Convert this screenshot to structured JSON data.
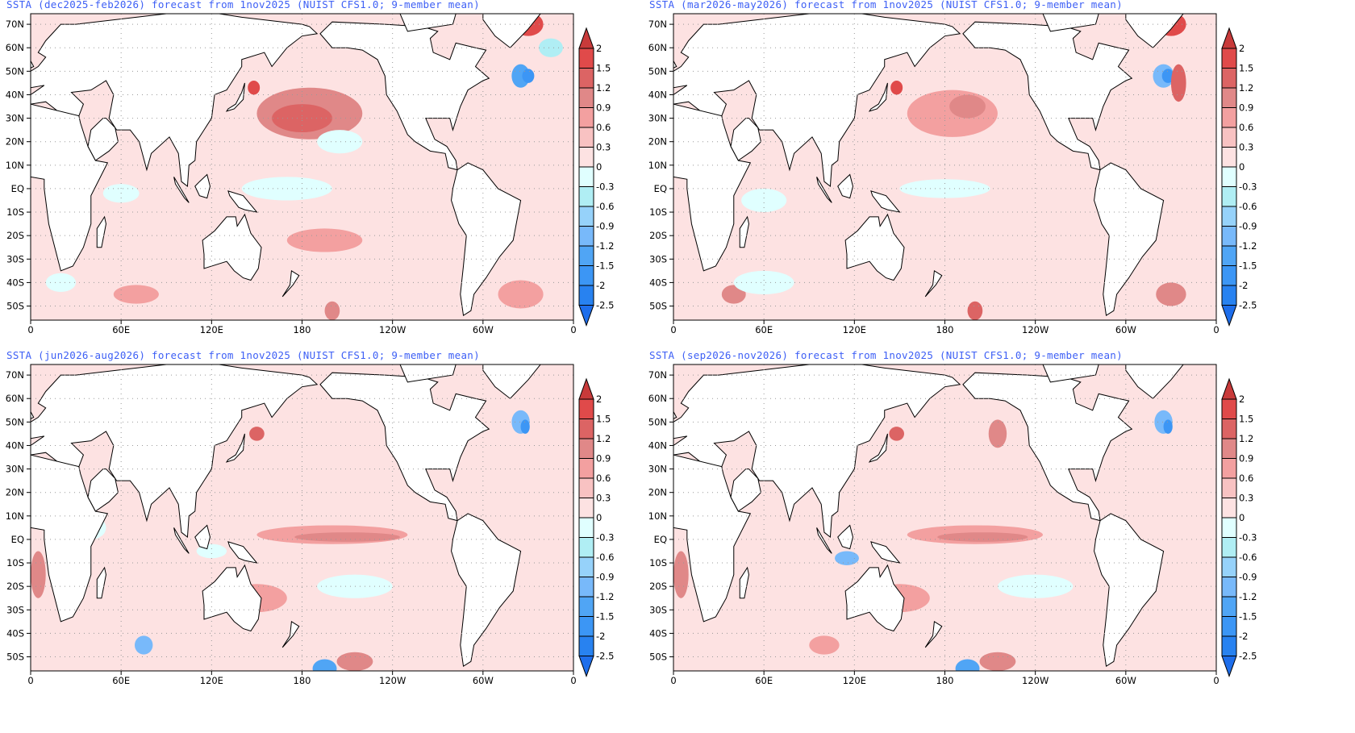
{
  "panels": [
    {
      "title": "SSTA (dec2025-feb2026) forecast from 1nov2025 (NUIST CFS1.0; 9-member mean)"
    },
    {
      "title": "SSTA (mar2026-may2026) forecast from 1nov2025 (NUIST CFS1.0; 9-member mean)"
    },
    {
      "title": "SSTA (jun2026-aug2026) forecast from 1nov2025 (NUIST CFS1.0; 9-member mean)"
    },
    {
      "title": "SSTA (sep2026-nov2026) forecast from 1nov2025 (NUIST CFS1.0; 9-member mean)"
    }
  ],
  "lat_ticks": [
    "70N",
    "60N",
    "50N",
    "40N",
    "30N",
    "20N",
    "10N",
    "EQ",
    "10S",
    "20S",
    "30S",
    "40S",
    "50S"
  ],
  "lon_ticks": [
    "0",
    "60E",
    "120E",
    "180",
    "120W",
    "60W",
    "0"
  ],
  "colorbar": {
    "labels": [
      "2",
      "1.5",
      "1.2",
      "0.9",
      "0.6",
      "0.3",
      "0",
      "-0.3",
      "-0.6",
      "-0.9",
      "-1.2",
      "-1.5",
      "-2",
      "-2.5"
    ],
    "colors": [
      "#c83a3a",
      "#e04a4a",
      "#dc6464",
      "#e08888",
      "#f3a0a0",
      "#f8c2c2",
      "#fde2e2",
      "#e0ffff",
      "#b0eef4",
      "#96d2fa",
      "#78b9fa",
      "#50a5f5",
      "#3c96f5",
      "#2882f0",
      "#1e6eeb"
    ]
  }
}
